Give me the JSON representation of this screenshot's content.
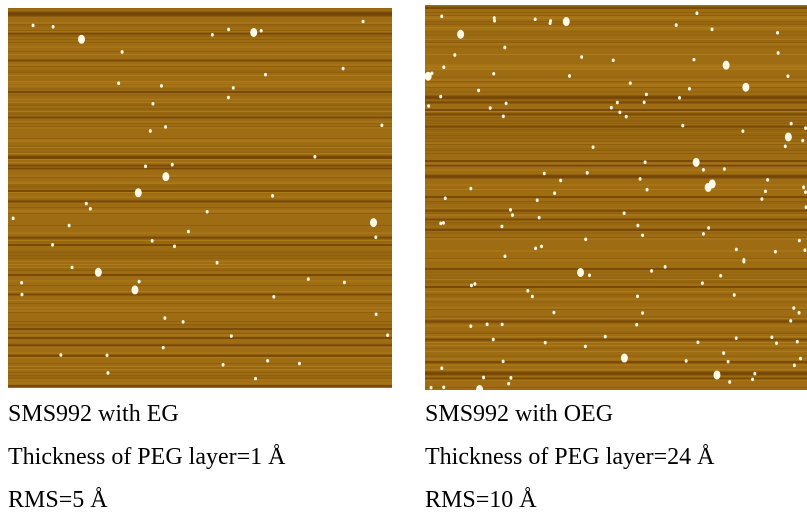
{
  "panels": [
    {
      "title": "SMS992 with EG",
      "thickness": "Thickness of PEG layer=1 Å",
      "rms": "RMS=5 Å"
    },
    {
      "title": "SMS992 with OEG",
      "thickness": "Thickness of PEG layer=24 Å",
      "rms": "RMS=10 Å"
    }
  ]
}
